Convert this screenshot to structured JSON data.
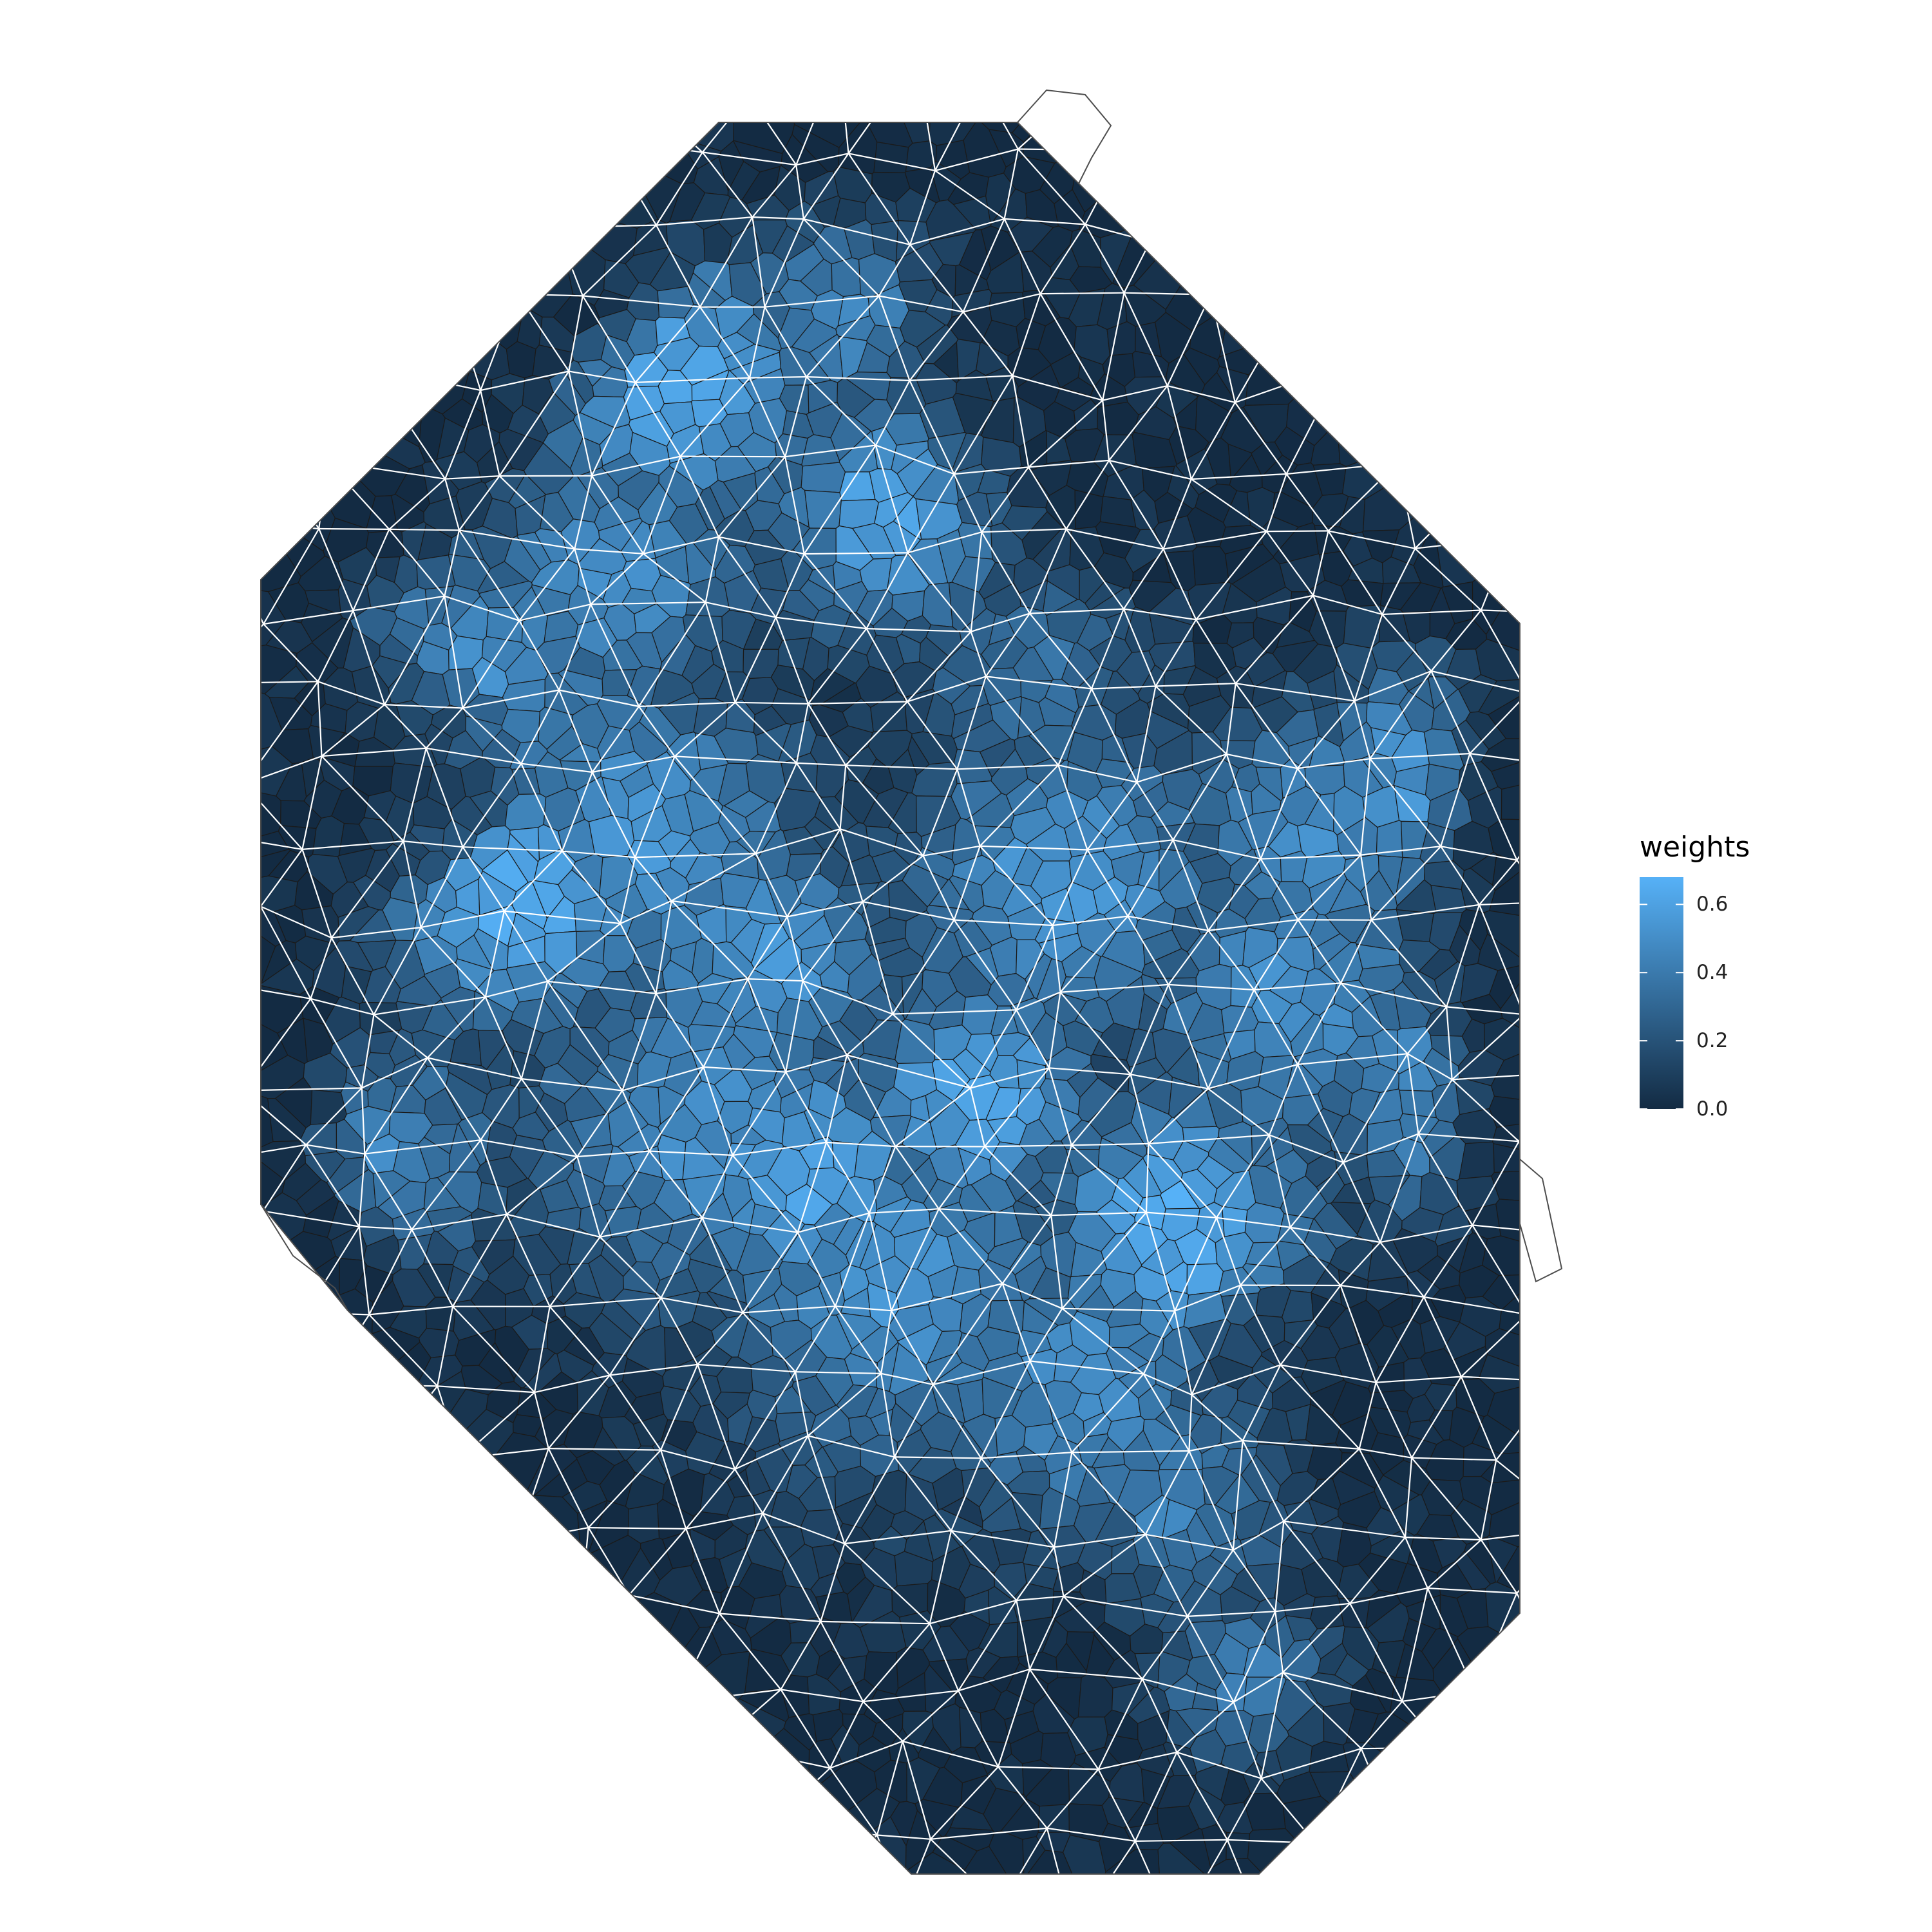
{
  "chart_data": {
    "type": "heatmap",
    "description_type": "voronoi-mesh",
    "title": "",
    "xlabel": "",
    "ylabel": "",
    "legend": {
      "title": "weights",
      "position": "right",
      "range": [
        0.0,
        0.68
      ],
      "ticks": [
        0.0,
        0.2,
        0.4,
        0.6
      ],
      "tick_labels": [
        "0.0",
        "0.2",
        "0.4",
        "0.6"
      ],
      "color_low": "#132b43",
      "color_high": "#56b1f7"
    },
    "grid": false,
    "mesh_edge_color": "#ffffff",
    "cell_border_color": "#1a1a1a",
    "boundary_color": "#4d4d4d"
  }
}
